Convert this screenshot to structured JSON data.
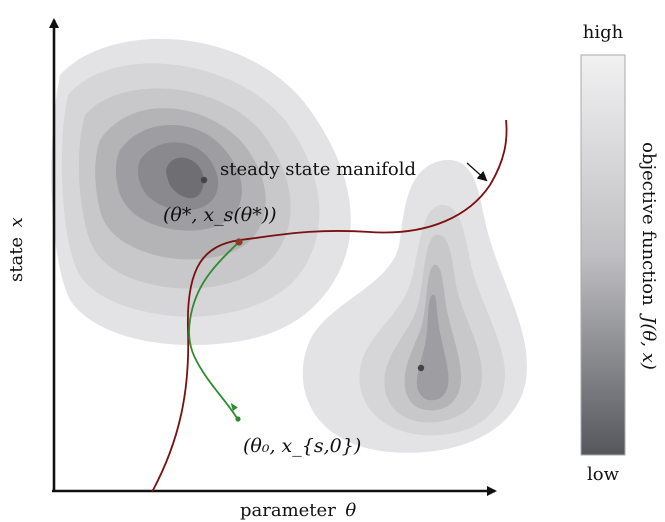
{
  "axes": {
    "x_label": "parameter",
    "x_symbol": "θ",
    "y_label": "state",
    "y_symbol": "x"
  },
  "labels": {
    "manifold": "steady state manifold",
    "optimum_point": "(θ*, x_s(θ*))",
    "start_point": "(θ₀, x_{s,0})"
  },
  "colorbar": {
    "high_label": "high",
    "low_label": "low",
    "title_text": "objective function",
    "title_math": "J(θ, x)"
  },
  "colors": {
    "manifold_curve": "#7a1010",
    "trajectory": "#2e8b2e",
    "contour_darkest": "#6f6f73",
    "contour_lightest": "#e3e3e5"
  }
}
